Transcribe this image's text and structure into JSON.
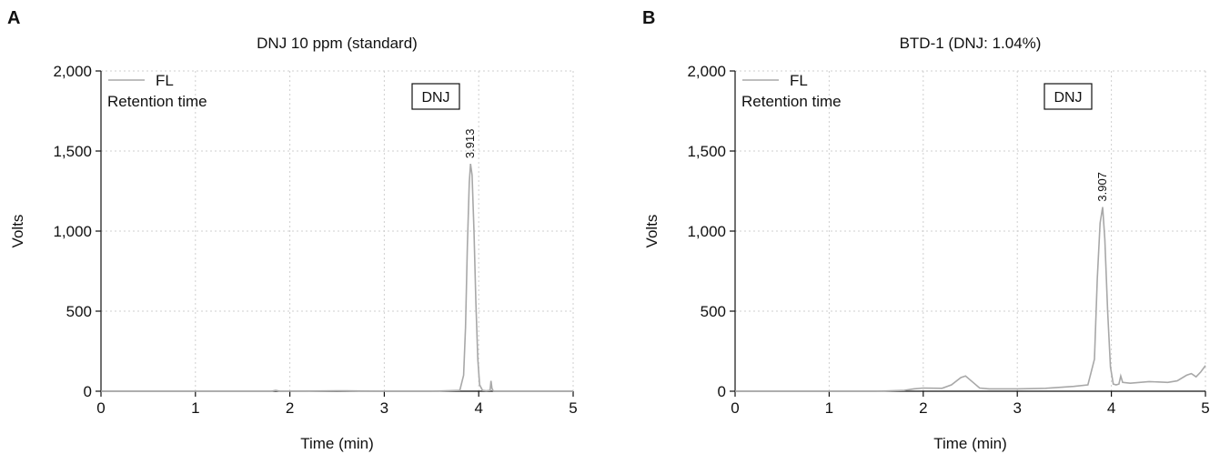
{
  "chart_data": [
    {
      "type": "line",
      "panel": "A",
      "title": "DNJ 10 ppm (standard)",
      "xlabel": "Time (min)",
      "ylabel": "Volts",
      "xlim": [
        0,
        5
      ],
      "ylim": [
        0,
        2000
      ],
      "x_ticks": [
        0,
        1,
        2,
        3,
        4,
        5
      ],
      "y_ticks": [
        0,
        500,
        1000,
        1500,
        2000
      ],
      "x_tick_labels": [
        "0",
        "1",
        "2",
        "3",
        "4",
        "5"
      ],
      "y_tick_labels": [
        "0",
        "500",
        "1,000",
        "1,500",
        "2,000"
      ],
      "grid": true,
      "legend": {
        "placement": "top-left",
        "entries": [
          "FL"
        ],
        "subtitle": "Retention time"
      },
      "annotation": "DNJ",
      "peaks": [
        {
          "x": 3.913,
          "y": 1420,
          "label": "3.913"
        }
      ],
      "series": [
        {
          "name": "FL",
          "color": "#a8a8a8",
          "x": [
            0,
            1.0,
            1.8,
            1.85,
            1.9,
            2.5,
            3.0,
            3.5,
            3.8,
            3.84,
            3.86,
            3.88,
            3.9,
            3.913,
            3.93,
            3.95,
            3.97,
            3.99,
            4.01,
            4.04,
            4.08,
            4.12,
            4.13,
            4.14,
            4.15,
            4.16,
            4.5,
            5.0
          ],
          "y": [
            0,
            0,
            0,
            5,
            0,
            3,
            0,
            0,
            5,
            100,
            400,
            900,
            1300,
            1420,
            1350,
            1000,
            550,
            200,
            40,
            5,
            3,
            5,
            65,
            20,
            5,
            0,
            0,
            0
          ]
        }
      ]
    },
    {
      "type": "line",
      "panel": "B",
      "title": "BTD-1 (DNJ: 1.04%)",
      "xlabel": "Time (min)",
      "ylabel": "Volts",
      "xlim": [
        0,
        5
      ],
      "ylim": [
        0,
        2000
      ],
      "x_ticks": [
        0,
        1,
        2,
        3,
        4,
        5
      ],
      "y_ticks": [
        0,
        500,
        1000,
        1500,
        2000
      ],
      "x_tick_labels": [
        "0",
        "1",
        "2",
        "3",
        "4",
        "5"
      ],
      "y_tick_labels": [
        "0",
        "500",
        "1,000",
        "1,500",
        "2,000"
      ],
      "grid": true,
      "legend": {
        "placement": "top-left",
        "entries": [
          "FL"
        ],
        "subtitle": "Retention time"
      },
      "annotation": "DNJ",
      "peaks": [
        {
          "x": 3.907,
          "y": 1150,
          "label": "3.907"
        }
      ],
      "series": [
        {
          "name": "FL",
          "color": "#a8a8a8",
          "x": [
            0,
            1.5,
            1.8,
            1.9,
            2.0,
            2.2,
            2.3,
            2.4,
            2.45,
            2.5,
            2.6,
            2.7,
            3.0,
            3.3,
            3.6,
            3.75,
            3.82,
            3.85,
            3.88,
            3.907,
            3.93,
            3.96,
            3.99,
            4.02,
            4.05,
            4.08,
            4.1,
            4.12,
            4.2,
            4.4,
            4.6,
            4.7,
            4.8,
            4.85,
            4.9,
            4.95,
            5.0
          ],
          "y": [
            0,
            0,
            5,
            15,
            20,
            18,
            40,
            85,
            95,
            70,
            20,
            15,
            15,
            18,
            30,
            40,
            200,
            700,
            1050,
            1150,
            950,
            500,
            150,
            45,
            40,
            45,
            95,
            55,
            50,
            60,
            55,
            65,
            100,
            110,
            90,
            120,
            160
          ]
        }
      ]
    }
  ]
}
